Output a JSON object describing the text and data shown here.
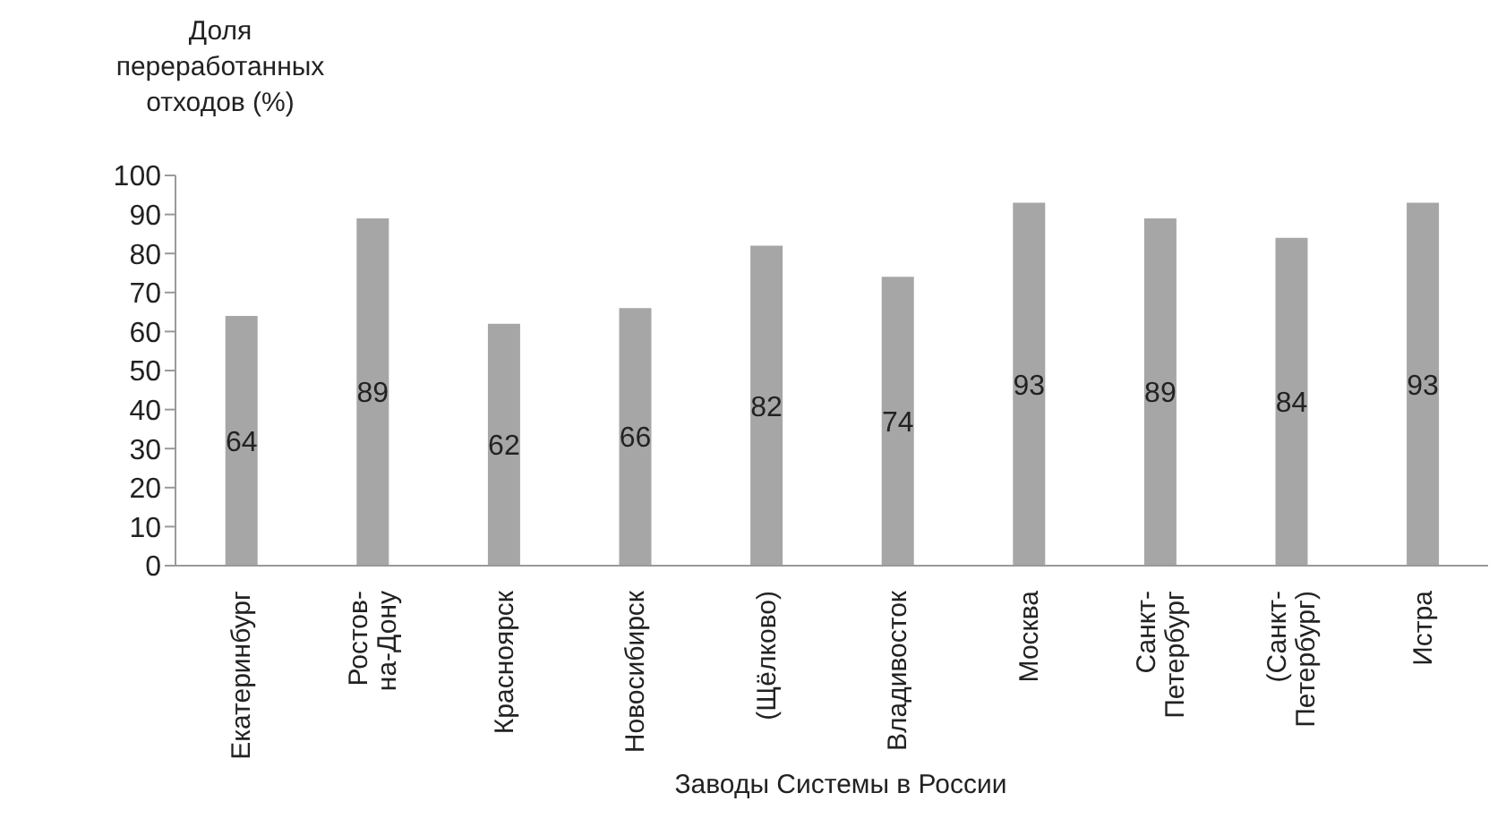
{
  "chart_data": {
    "type": "bar",
    "ylabel": "Доля переработанных отходов (%)",
    "xlabel": "Заводы Системы в России",
    "categories": [
      "Екатеринбург",
      "Ростов-на-Дону",
      "Красноярск",
      "Новосибирск",
      "(Щёлково)",
      "Владивосток",
      "Москва",
      "Санкт-Петербург",
      "(Санкт-Петербург)",
      "Истра"
    ],
    "values": [
      64,
      89,
      62,
      66,
      82,
      74,
      93,
      89,
      84,
      93
    ],
    "color": "#a6a6a6",
    "ylim": [
      0,
      100
    ],
    "yticks": [
      0,
      10,
      20,
      30,
      40,
      50,
      60,
      70,
      80,
      90,
      100
    ],
    "grid": false,
    "data_labels": true
  }
}
